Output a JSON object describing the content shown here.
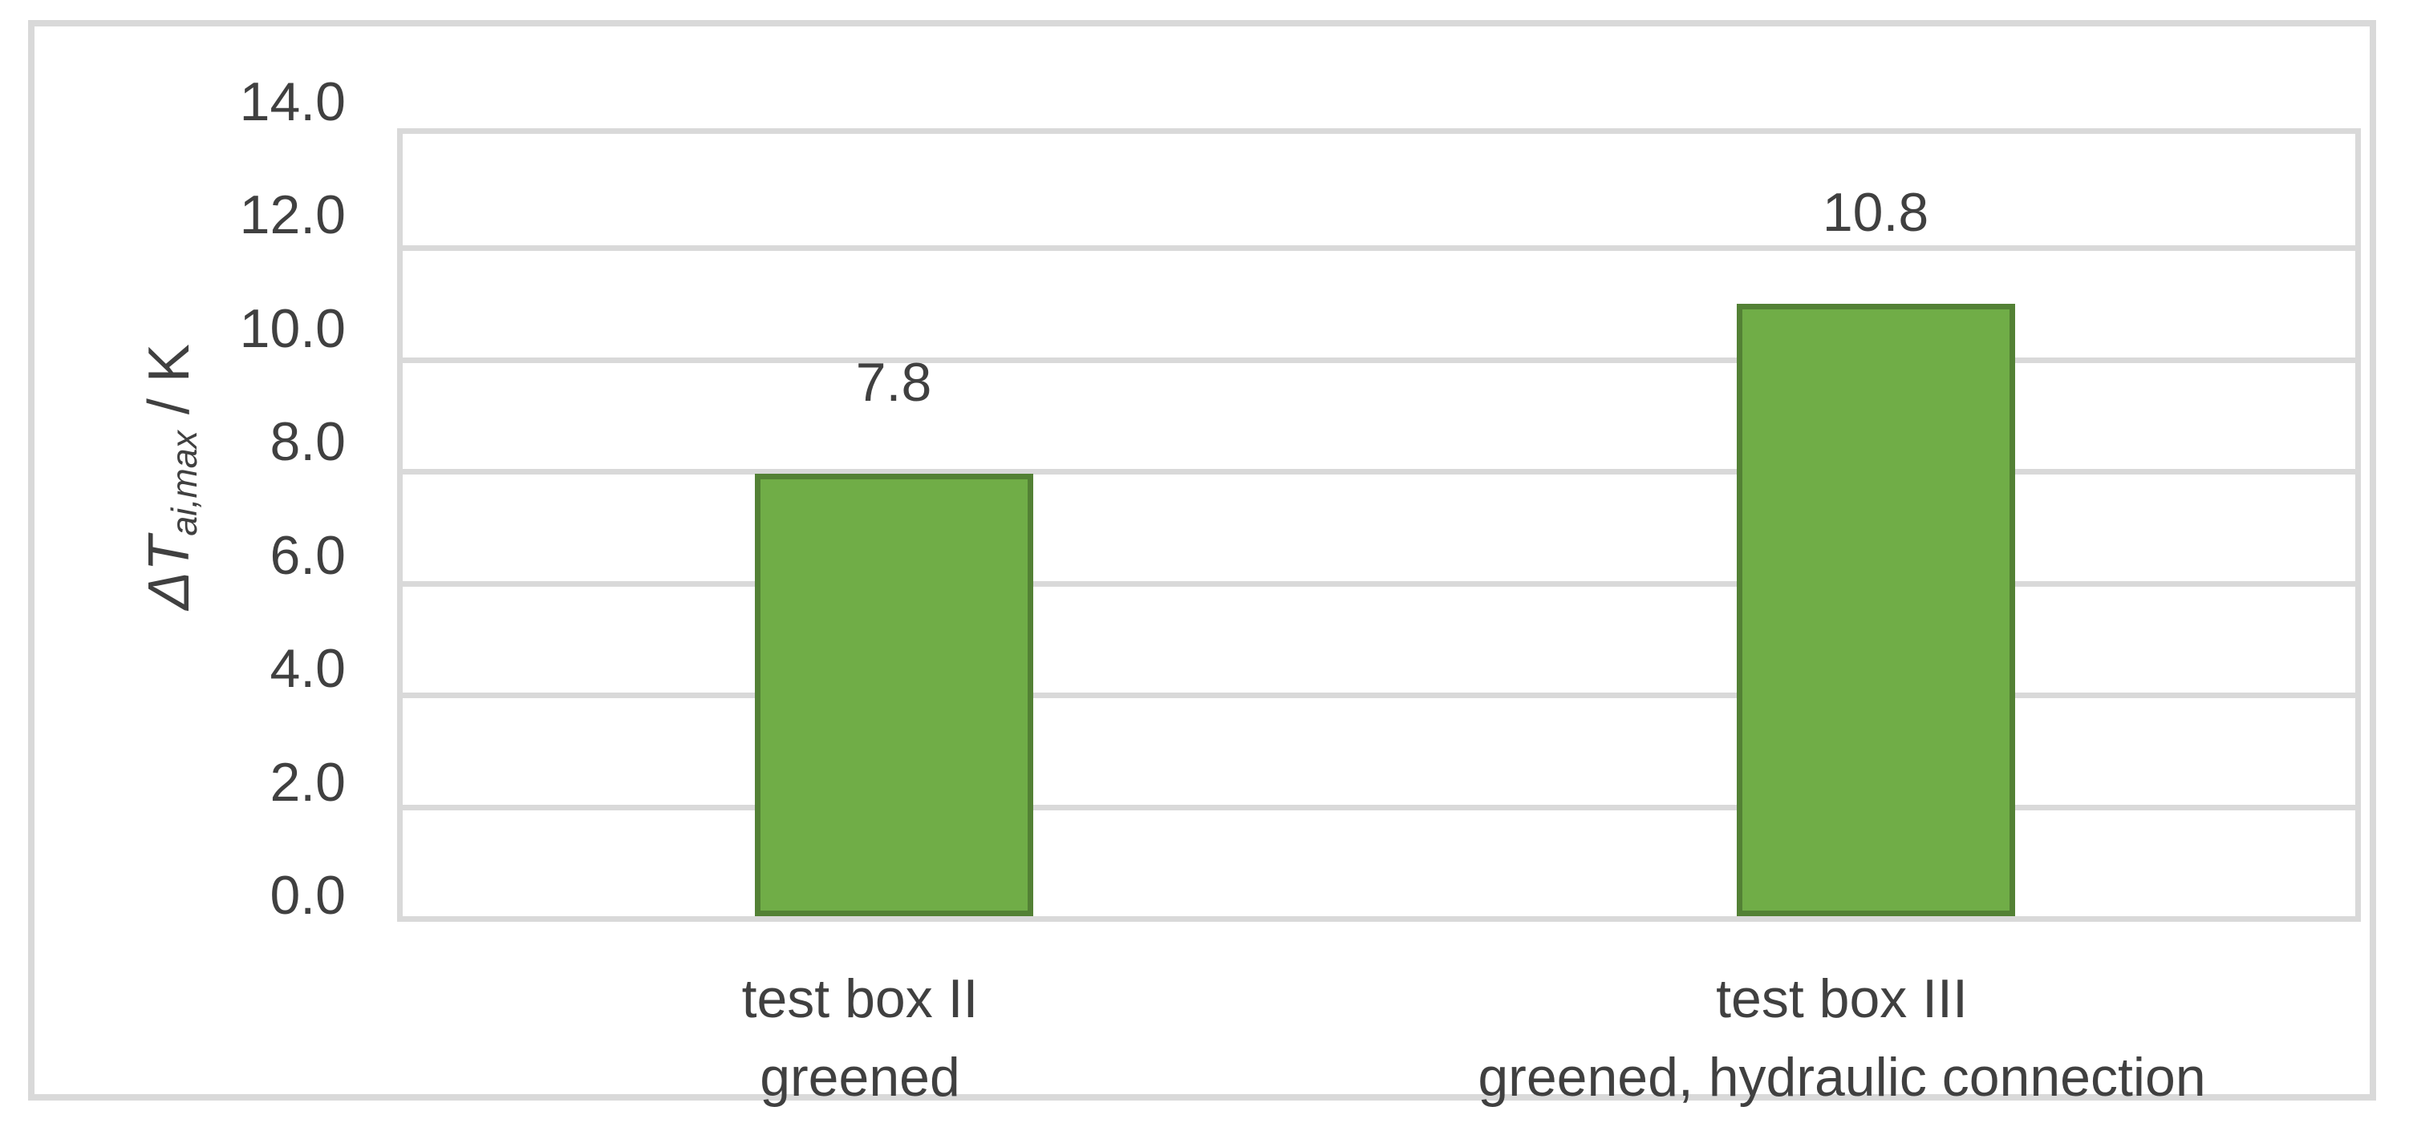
{
  "chart_data": {
    "type": "bar",
    "title": "",
    "xlabel": "",
    "ylabel": "ΔT_ai,max / K",
    "y_axis_title": {
      "symbol": "ΔT",
      "subscript": "ai,max",
      "unit": " / K"
    },
    "categories": [
      [
        "test box II",
        "greened"
      ],
      [
        "test box III",
        "greened, hydraulic connection"
      ]
    ],
    "values": [
      7.8,
      10.8
    ],
    "data_labels": [
      "7.8",
      "10.8"
    ],
    "ylim": [
      0,
      14
    ],
    "ytick_step": 2,
    "ytick_labels": [
      "0.0",
      "2.0",
      "4.0",
      "6.0",
      "8.0",
      "10.0",
      "12.0",
      "14.0"
    ],
    "grid": "horizontal-only",
    "legend": "none",
    "colors": {
      "bar_fill": "#70AD47",
      "bar_border": "#538135",
      "gridline": "#D9D9D9",
      "chart_border": "#D9D9D9",
      "text": "#404040",
      "background": "#FFFFFF"
    }
  }
}
